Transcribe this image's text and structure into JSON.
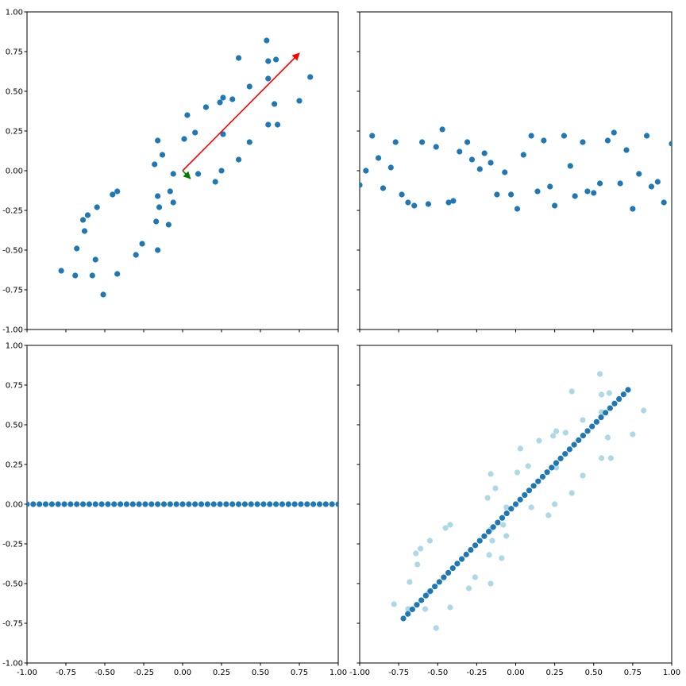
{
  "chart_data": [
    {
      "type": "scatter",
      "panel": "top-left",
      "xlim": [
        -1,
        1
      ],
      "ylim": [
        -1,
        1
      ],
      "xticks": [],
      "yticks": [
        "-1.00",
        "-0.75",
        "-0.50",
        "-0.25",
        "0.00",
        "0.25",
        "0.50",
        "0.75",
        "1.00"
      ],
      "grid": false,
      "colors": {
        "points": "#1f77b4"
      },
      "series": [
        {
          "points": [
            [
              -0.78,
              -0.63
            ],
            [
              -0.69,
              -0.66
            ],
            [
              -0.68,
              -0.49
            ],
            [
              -0.64,
              -0.31
            ],
            [
              -0.63,
              -0.38
            ],
            [
              -0.61,
              -0.28
            ],
            [
              -0.58,
              -0.66
            ],
            [
              -0.56,
              -0.56
            ],
            [
              -0.55,
              -0.23
            ],
            [
              -0.51,
              -0.78
            ],
            [
              -0.45,
              -0.15
            ],
            [
              -0.42,
              -0.13
            ],
            [
              -0.42,
              -0.65
            ],
            [
              -0.3,
              -0.53
            ],
            [
              -0.26,
              -0.46
            ],
            [
              -0.18,
              0.04
            ],
            [
              -0.16,
              0.19
            ],
            [
              -0.17,
              -0.32
            ],
            [
              -0.16,
              -0.5
            ],
            [
              -0.16,
              -0.16
            ],
            [
              -0.15,
              -0.23
            ],
            [
              -0.13,
              0.1
            ],
            [
              -0.09,
              -0.34
            ],
            [
              -0.08,
              -0.13
            ],
            [
              -0.06,
              -0.02
            ],
            [
              -0.06,
              -0.2
            ],
            [
              0.01,
              0.2
            ],
            [
              0.03,
              0.35
            ],
            [
              0.08,
              0.24
            ],
            [
              0.1,
              -0.02
            ],
            [
              0.15,
              0.4
            ],
            [
              0.21,
              -0.07
            ],
            [
              0.24,
              0.43
            ],
            [
              0.25,
              0.0
            ],
            [
              0.26,
              0.46
            ],
            [
              0.26,
              0.23
            ],
            [
              0.32,
              0.45
            ],
            [
              0.36,
              0.07
            ],
            [
              0.36,
              0.71
            ],
            [
              0.43,
              0.18
            ],
            [
              0.43,
              0.53
            ],
            [
              0.54,
              0.82
            ],
            [
              0.55,
              0.69
            ],
            [
              0.55,
              0.58
            ],
            [
              0.55,
              0.29
            ],
            [
              0.59,
              0.42
            ],
            [
              0.6,
              0.7
            ],
            [
              0.61,
              0.29
            ],
            [
              0.75,
              0.44
            ],
            [
              0.82,
              0.59
            ]
          ]
        }
      ],
      "vectors": [
        {
          "from": [
            0,
            0
          ],
          "to": [
            0.75,
            0.74
          ],
          "color": "#ff0000"
        },
        {
          "from": [
            0,
            0
          ],
          "to": [
            0.05,
            -0.05
          ],
          "color": "#008000"
        }
      ]
    },
    {
      "type": "scatter",
      "panel": "top-right",
      "xlim": [
        -1,
        1
      ],
      "ylim": [
        -1,
        1
      ],
      "xticks": [],
      "yticks": [],
      "grid": false,
      "colors": {
        "points": "#1f77b4"
      },
      "series": [
        {
          "points": [
            [
              -1.0,
              -0.09
            ],
            [
              -0.96,
              0.0
            ],
            [
              -0.92,
              0.22
            ],
            [
              -0.88,
              0.08
            ],
            [
              -0.85,
              -0.11
            ],
            [
              -0.8,
              0.02
            ],
            [
              -0.77,
              0.18
            ],
            [
              -0.73,
              -0.15
            ],
            [
              -0.69,
              -0.2
            ],
            [
              -0.65,
              -0.22
            ],
            [
              -0.6,
              0.18
            ],
            [
              -0.56,
              -0.21
            ],
            [
              -0.51,
              0.15
            ],
            [
              -0.47,
              0.26
            ],
            [
              -0.43,
              -0.2
            ],
            [
              -0.4,
              -0.19
            ],
            [
              -0.36,
              0.12
            ],
            [
              -0.31,
              0.18
            ],
            [
              -0.28,
              0.07
            ],
            [
              -0.23,
              0.01
            ],
            [
              -0.2,
              0.11
            ],
            [
              -0.16,
              0.05
            ],
            [
              -0.12,
              -0.15
            ],
            [
              -0.07,
              -0.01
            ],
            [
              -0.03,
              -0.15
            ],
            [
              0.01,
              -0.24
            ],
            [
              0.05,
              0.1
            ],
            [
              0.1,
              0.22
            ],
            [
              0.14,
              -0.13
            ],
            [
              0.18,
              0.19
            ],
            [
              0.22,
              -0.1
            ],
            [
              0.25,
              -0.22
            ],
            [
              0.31,
              0.22
            ],
            [
              0.35,
              0.03
            ],
            [
              0.38,
              -0.16
            ],
            [
              0.43,
              0.18
            ],
            [
              0.46,
              -0.13
            ],
            [
              0.5,
              -0.14
            ],
            [
              0.54,
              -0.08
            ],
            [
              0.59,
              0.19
            ],
            [
              0.63,
              0.24
            ],
            [
              0.67,
              -0.08
            ],
            [
              0.71,
              0.13
            ],
            [
              0.75,
              -0.24
            ],
            [
              0.79,
              -0.02
            ],
            [
              0.84,
              0.22
            ],
            [
              0.87,
              -0.1
            ],
            [
              0.91,
              -0.07
            ],
            [
              0.95,
              -0.2
            ],
            [
              1.0,
              0.17
            ]
          ]
        }
      ]
    },
    {
      "type": "scatter",
      "panel": "bottom-left",
      "xlim": [
        -1,
        1
      ],
      "ylim": [
        -1,
        1
      ],
      "xticks": [
        "-1.00",
        "-0.75",
        "-0.50",
        "-0.25",
        "0.00",
        "0.25",
        "0.50",
        "0.75",
        "1.00"
      ],
      "yticks": [
        "-1.00",
        "-0.75",
        "-0.50",
        "-0.25",
        "0.00",
        "0.25",
        "0.50",
        "0.75",
        "1.00"
      ],
      "grid": false,
      "colors": {
        "points": "#1f77b4"
      },
      "series": [
        {
          "y_constant": 0,
          "x_start": -1.0,
          "x_step": 0.04,
          "count": 51
        }
      ]
    },
    {
      "type": "scatter",
      "panel": "bottom-right",
      "xlim": [
        -1,
        1
      ],
      "ylim": [
        -1,
        1
      ],
      "xticks": [
        "-1.00",
        "-0.75",
        "-0.50",
        "-0.25",
        "0.00",
        "0.25",
        "0.50",
        "0.75",
        "1.00"
      ],
      "yticks": [],
      "grid": false,
      "colors": {
        "original": "#add8e6",
        "projected": "#1f77b4"
      },
      "series": [
        {
          "role": "original",
          "same_points_as_panel": "top-left"
        },
        {
          "role": "projected",
          "along_line": {
            "slope": 1.0
          },
          "x_start": -0.72,
          "x_step": 0.0288,
          "count": 51
        }
      ]
    }
  ]
}
